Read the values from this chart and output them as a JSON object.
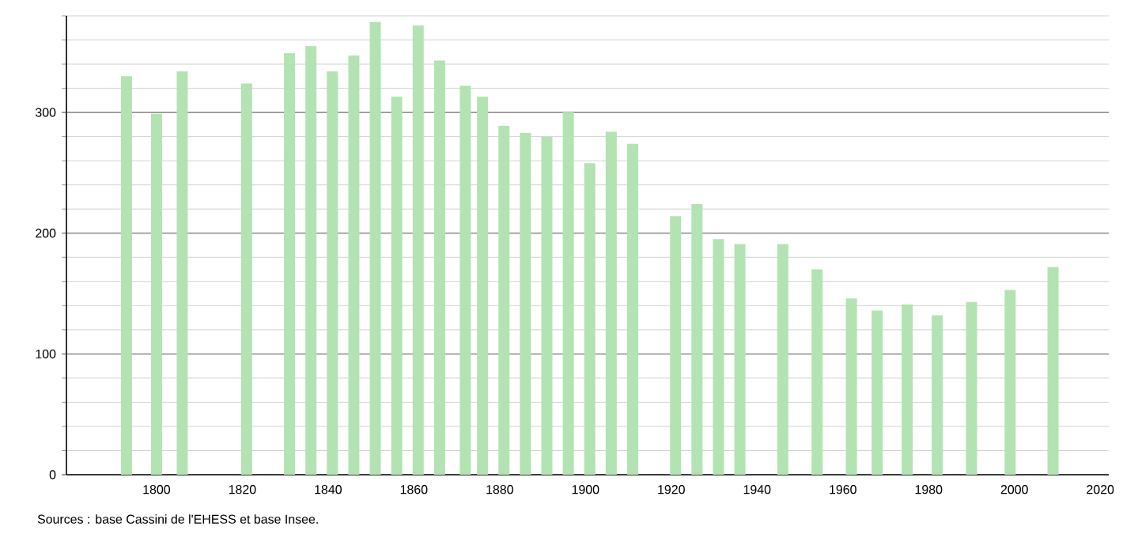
{
  "chart_data": {
    "type": "bar",
    "x": [
      1793,
      1800,
      1806,
      1821,
      1831,
      1836,
      1841,
      1846,
      1851,
      1856,
      1861,
      1866,
      1872,
      1876,
      1881,
      1886,
      1891,
      1896,
      1901,
      1906,
      1911,
      1921,
      1926,
      1931,
      1936,
      1946,
      1954,
      1962,
      1968,
      1975,
      1982,
      1990,
      1999,
      2009
    ],
    "values": [
      330,
      299,
      334,
      324,
      349,
      355,
      334,
      347,
      375,
      313,
      372,
      343,
      322,
      313,
      289,
      283,
      280,
      300,
      258,
      284,
      274,
      214,
      224,
      195,
      191,
      191,
      170,
      146,
      136,
      141,
      132,
      143,
      153,
      172
    ],
    "color": "#b3e3b3",
    "xlim": [
      1779,
      2022
    ],
    "xticks": [
      1800,
      1820,
      1840,
      1860,
      1880,
      1900,
      1920,
      1940,
      1960,
      1980,
      2000,
      2020
    ],
    "ylim": [
      0,
      380
    ],
    "yticks": [
      0,
      {
        "value": 20,
        "label": null
      },
      {
        "value": 40,
        "label": null
      },
      {
        "value": 60,
        "label": null
      },
      {
        "value": 80,
        "label": null
      },
      100,
      {
        "value": 120,
        "label": null
      },
      {
        "value": 140,
        "label": null
      },
      {
        "value": 160,
        "label": null
      },
      {
        "value": 180,
        "label": null
      },
      200,
      {
        "value": 220,
        "label": null
      },
      {
        "value": 240,
        "label": null
      },
      {
        "value": 260,
        "label": null
      },
      {
        "value": 280,
        "label": null
      },
      300,
      {
        "value": 320,
        "label": null
      },
      {
        "value": 340,
        "label": null
      },
      {
        "value": 360,
        "label": null
      },
      {
        "value": 380,
        "label": null
      }
    ],
    "grid": "y",
    "annotations": [
      "Sources : base Cassini de l'EHESS et base Insee."
    ]
  }
}
